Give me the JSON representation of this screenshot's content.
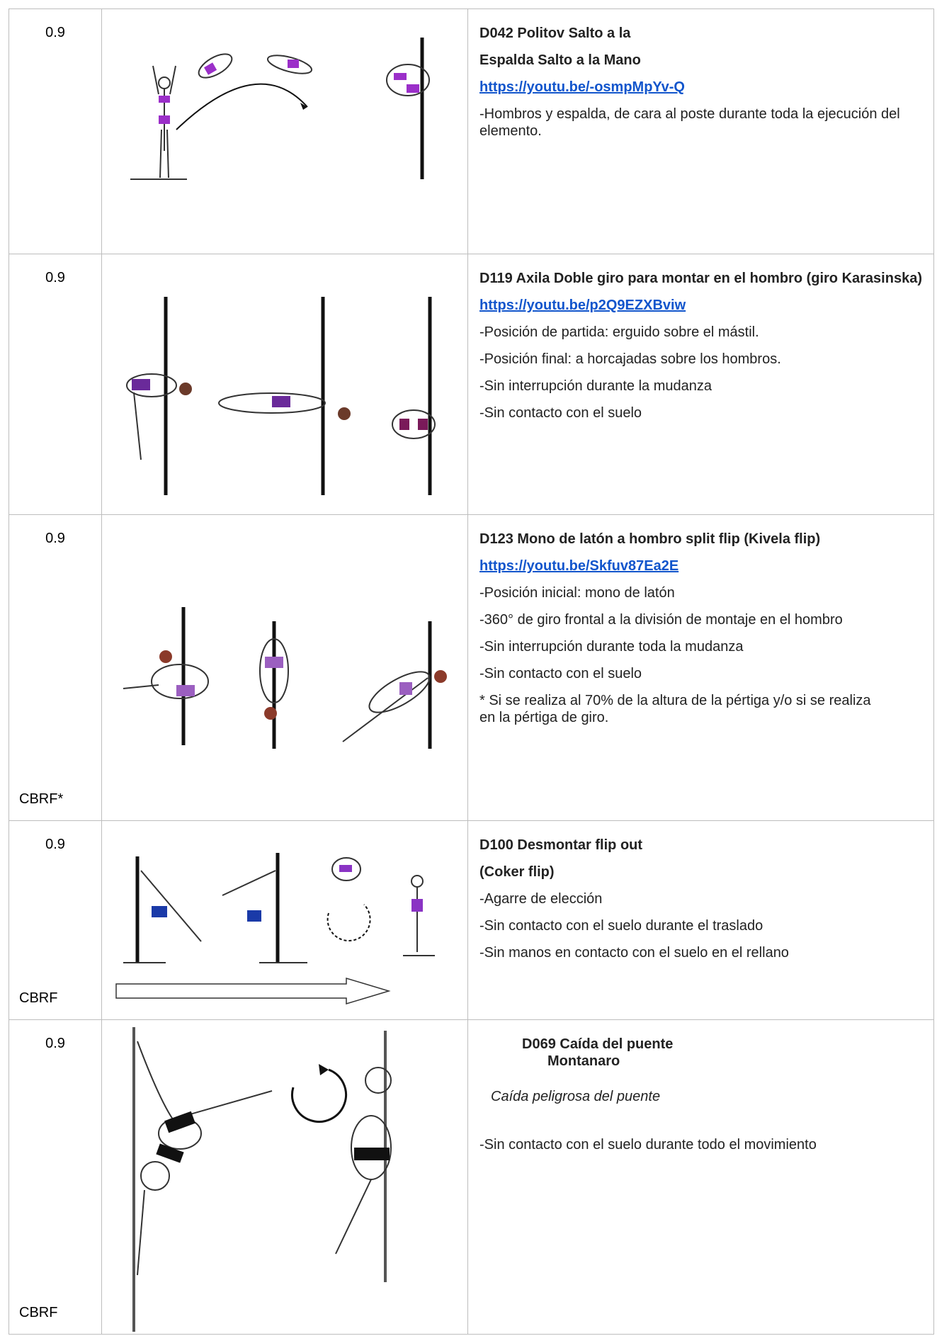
{
  "rows": [
    {
      "score": "0.9",
      "title": [
        "D042 Politov Salto a la",
        "Espalda Salto a la Mano"
      ],
      "link": "https://youtu.be/-osmpMpYv-Q",
      "notes": [
        "-Hombros y espalda, de cara al poste durante toda la ejecución del elemento."
      ]
    },
    {
      "score": "0.9",
      "title": [
        "D119 Axila Doble giro para montar en el hombro (giro Karasinska)"
      ],
      "link": "https://youtu.be/p2Q9EZXBviw",
      "notes": [
        "-Posición de partida: erguido sobre el mástil.",
        "-Posición final: a horcajadas sobre los hombros.",
        "-Sin interrupción durante la mudanza",
        "-Sin contacto con el suelo"
      ]
    },
    {
      "score": "0.9",
      "tag": "CBRF*",
      "title": [
        "D123 Mono de latón a hombro split flip (Kivela flip)"
      ],
      "link": "https://youtu.be/Skfuv87Ea2E",
      "notes": [
        "-Posición inicial: mono de latón",
        "-360° de giro frontal a la división de montaje en el hombro",
        "-Sin interrupción durante toda la mudanza",
        "-Sin contacto con el suelo",
        "* Si se realiza al 70% de la altura de la pértiga y/o si se realiza en la pértiga de giro."
      ]
    },
    {
      "score": "0.9",
      "tag": "CBRF",
      "title": [
        "D100 Desmontar flip out",
        "(Coker flip)"
      ],
      "notes": [
        "-Agarre de elección",
        "-Sin contacto con el suelo durante el traslado",
        "-Sin manos en contacto con el suelo en el rellano"
      ]
    },
    {
      "score": "0.9",
      "tag": "CBRF",
      "title": [
        "D069 Caída del puente",
        "Montanaro"
      ],
      "subtitle": "Caída peligrosa del puente",
      "notes": [
        "-Sin contacto con el suelo durante todo el movimiento"
      ]
    }
  ]
}
